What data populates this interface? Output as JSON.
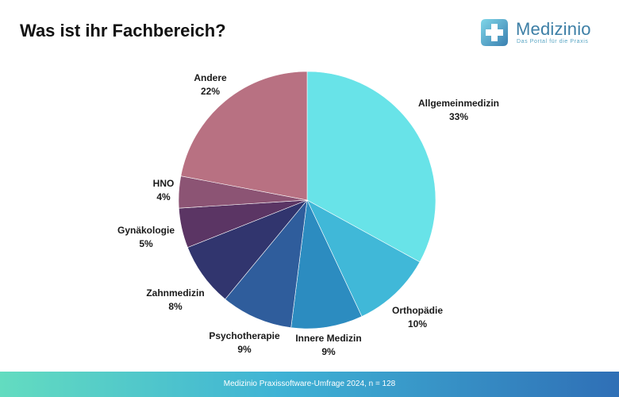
{
  "title": "Was ist ihr Fachbereich?",
  "logo": {
    "name": "Medizinio",
    "tagline": "Das Portal für die Praxis"
  },
  "footer": {
    "text": "Medizinio Praxissoftware-Umfrage 2024, n = 128"
  },
  "chart_data": {
    "type": "pie",
    "title": "Was ist ihr Fachbereich?",
    "slices": [
      {
        "label": "Allgemeinmedizin",
        "value": 33,
        "display": "33%",
        "color": "#68e3e8"
      },
      {
        "label": "Orthopädie",
        "value": 10,
        "display": "10%",
        "color": "#40b8d8"
      },
      {
        "label": "Innere Medizin",
        "value": 9,
        "display": "9%",
        "color": "#2c8cc0"
      },
      {
        "label": "Psychotherapie",
        "value": 9,
        "display": "9%",
        "color": "#2f5d9c"
      },
      {
        "label": "Zahnmedizin",
        "value": 8,
        "display": "8%",
        "color": "#31356e"
      },
      {
        "label": "Gynäkologie",
        "value": 5,
        "display": "5%",
        "color": "#5b3564"
      },
      {
        "label": "HNO",
        "value": 4,
        "display": "4%",
        "color": "#8c5474"
      },
      {
        "label": "Andere",
        "value": 22,
        "display": "22%",
        "color": "#b87182"
      }
    ]
  }
}
